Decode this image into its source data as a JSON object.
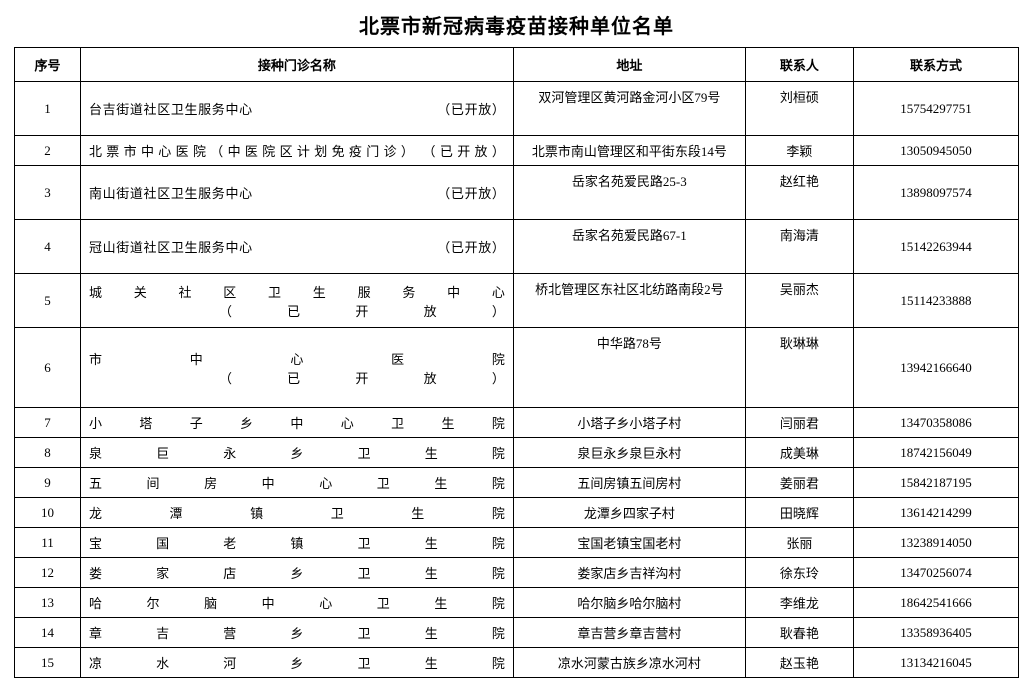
{
  "title": "北票市新冠病毒疫苗接种单位名单",
  "columns": [
    "序号",
    "接种门诊名称",
    "地址",
    "联系人",
    "联系方式"
  ],
  "rows": [
    {
      "seq": "1",
      "name": "台吉街道社区卫生服务中心　　　　　　　　　　　　　　（已开放）",
      "addr": "双河管理区黄河路金河小区79号",
      "contact": "刘桓硕",
      "phone": "15754297751",
      "rowClass": "r-tall1"
    },
    {
      "seq": "2",
      "name": "北票市中心医院（中医院区计划免疫门诊）　（已开放）",
      "addr": "北票市南山管理区和平街东段14号",
      "contact": "李颖",
      "phone": "13050945050",
      "rowClass": "r-normal"
    },
    {
      "seq": "3",
      "name": "南山街道社区卫生服务中心　　　　　　　　　　　　　　（已开放）",
      "addr": "岳家名苑爱民路25-3",
      "contact": "赵红艳",
      "phone": "13898097574",
      "rowClass": "r-tall1"
    },
    {
      "seq": "4",
      "name": "冠山街道社区卫生服务中心　　　　　　　　　　　　　　（已开放）",
      "addr": "岳家名苑爱民路67-1",
      "contact": "南海清",
      "phone": "15142263944",
      "rowClass": "r-tall1"
    },
    {
      "seq": "5",
      "name": "城关社区卫生服务中心\n　　（已开放）",
      "addr": "桥北管理区东社区北纺路南段2号",
      "contact": "吴丽杰",
      "phone": "15114233888",
      "rowClass": "r-tall1"
    },
    {
      "seq": "6",
      "name": "市中心医院　　　　　　　　　　　　　　　　　　　　　　　　　　　　\n　　（已开放）",
      "addr": "中华路78号",
      "contact": "耿琳琳",
      "phone": "13942166640",
      "rowClass": "r-tall2"
    },
    {
      "seq": "7",
      "name": "小塔子乡中心卫生院",
      "addr": "小塔子乡小塔子村",
      "contact": "闫丽君",
      "phone": "13470358086",
      "rowClass": "r-normal"
    },
    {
      "seq": "8",
      "name": "泉巨永乡卫生院",
      "addr": "泉巨永乡泉巨永村",
      "contact": "成美琳",
      "phone": "18742156049",
      "rowClass": "r-normal"
    },
    {
      "seq": "9",
      "name": "五间房中心卫生院",
      "addr": "五间房镇五间房村",
      "contact": "姜丽君",
      "phone": "15842187195",
      "rowClass": "r-normal"
    },
    {
      "seq": "10",
      "name": "龙潭镇卫生院",
      "addr": "龙潭乡四家子村",
      "contact": "田晓辉",
      "phone": "13614214299",
      "rowClass": "r-normal"
    },
    {
      "seq": "11",
      "name": "宝国老镇卫生院",
      "addr": "宝国老镇宝国老村",
      "contact": "张丽",
      "phone": "13238914050",
      "rowClass": "r-normal"
    },
    {
      "seq": "12",
      "name": "娄家店乡卫生院",
      "addr": "娄家店乡吉祥沟村",
      "contact": "徐东玲",
      "phone": "13470256074",
      "rowClass": "r-normal"
    },
    {
      "seq": "13",
      "name": "哈尔脑中心卫生院",
      "addr": "哈尔脑乡哈尔脑村",
      "contact": "李维龙",
      "phone": "18642541666",
      "rowClass": "r-normal"
    },
    {
      "seq": "14",
      "name": "章吉营乡卫生院",
      "addr": "章吉营乡章吉营村",
      "contact": "耿春艳",
      "phone": "13358936405",
      "rowClass": "r-normal"
    },
    {
      "seq": "15",
      "name": "凉水河乡卫生院",
      "addr": "凉水河蒙古族乡凉水河村",
      "contact": "赵玉艳",
      "phone": "13134216045",
      "rowClass": "r-normal"
    }
  ]
}
